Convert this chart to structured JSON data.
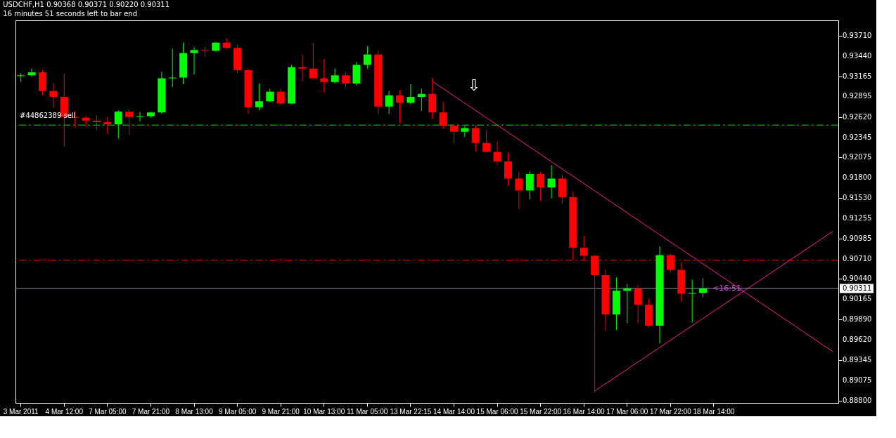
{
  "chart_data": {
    "type": "candlestick",
    "title": "USDCHF,H1  0.90368 0.90371 0.90220 0.90311",
    "subtitle": "16 minutes 51 seconds left to bar end",
    "categories": [
      "3 Mar 2011",
      null,
      null,
      null,
      "4 Mar 12:00",
      null,
      null,
      null,
      "7 Mar 05:00",
      null,
      null,
      null,
      "7 Mar 21:00",
      null,
      null,
      null,
      "8 Mar 13:00",
      null,
      null,
      null,
      "9 Mar 05:00",
      null,
      null,
      null,
      "9 Mar 21:00",
      null,
      null,
      null,
      "10 Mar 13:00",
      null,
      null,
      null,
      "11 Mar 05:00",
      null,
      null,
      null,
      "13 Mar 22:15",
      null,
      null,
      null,
      "14 Mar 14:00",
      null,
      null,
      null,
      "15 Mar 06:00",
      null,
      null,
      null,
      "15 Mar 22:00",
      null,
      null,
      null,
      "16 Mar 14:00",
      null,
      null,
      null,
      "17 Mar 06:00",
      null,
      null,
      null,
      "17 Mar 22:00",
      null,
      null,
      null,
      "18 Mar 14:00",
      null,
      null,
      null,
      null,
      null,
      null,
      null,
      null,
      null,
      null,
      null
    ],
    "ohlc": [
      [
        0.9317,
        0.9321,
        0.9309,
        0.9318
      ],
      [
        0.9318,
        0.9327,
        0.9316,
        0.9322
      ],
      [
        0.9322,
        0.9325,
        0.9291,
        0.9297
      ],
      [
        0.9297,
        0.9308,
        0.9274,
        0.9289
      ],
      [
        0.9289,
        0.932,
        0.9222,
        0.9262
      ],
      [
        0.9262,
        0.927,
        0.9248,
        0.9261
      ],
      [
        0.9261,
        0.9263,
        0.9249,
        0.9257
      ],
      [
        0.9257,
        0.9264,
        0.9244,
        0.9255
      ],
      [
        0.9255,
        0.9262,
        0.9239,
        0.9252
      ],
      [
        0.9252,
        0.9271,
        0.9233,
        0.9269
      ],
      [
        0.9269,
        0.9272,
        0.9238,
        0.9262
      ],
      [
        0.9262,
        0.9269,
        0.9256,
        0.9263
      ],
      [
        0.9263,
        0.9269,
        0.9261,
        0.9268
      ],
      [
        0.9268,
        0.9323,
        0.9266,
        0.9314
      ],
      [
        0.9314,
        0.9354,
        0.9302,
        0.9315
      ],
      [
        0.9315,
        0.9362,
        0.9306,
        0.9348
      ],
      [
        0.9348,
        0.9356,
        0.9319,
        0.9352
      ],
      [
        0.9352,
        0.9356,
        0.9343,
        0.9351
      ],
      [
        0.9351,
        0.9363,
        0.935,
        0.9362
      ],
      [
        0.9362,
        0.9368,
        0.9353,
        0.9355
      ],
      [
        0.9355,
        0.936,
        0.9321,
        0.9325
      ],
      [
        0.9325,
        0.9327,
        0.9266,
        0.9275
      ],
      [
        0.9275,
        0.9307,
        0.9271,
        0.9283
      ],
      [
        0.9283,
        0.93,
        0.9282,
        0.9296
      ],
      [
        0.9296,
        0.93,
        0.9278,
        0.928
      ],
      [
        0.928,
        0.9332,
        0.9279,
        0.9329
      ],
      [
        0.9329,
        0.9346,
        0.931,
        0.9327
      ],
      [
        0.9327,
        0.9362,
        0.9312,
        0.9314
      ],
      [
        0.9314,
        0.934,
        0.9295,
        0.9309
      ],
      [
        0.9309,
        0.9327,
        0.9307,
        0.9318
      ],
      [
        0.9318,
        0.9323,
        0.9301,
        0.9307
      ],
      [
        0.9307,
        0.9336,
        0.9304,
        0.9332
      ],
      [
        0.9332,
        0.9357,
        0.9327,
        0.9346
      ],
      [
        0.9346,
        0.9351,
        0.9266,
        0.9276
      ],
      [
        0.9276,
        0.9297,
        0.9266,
        0.9291
      ],
      [
        0.9291,
        0.9298,
        0.9254,
        0.9281
      ],
      [
        0.9281,
        0.9306,
        0.9279,
        0.9289
      ],
      [
        0.9289,
        0.93,
        0.927,
        0.9293
      ],
      [
        0.9293,
        0.9315,
        0.9259,
        0.9268
      ],
      [
        0.9268,
        0.9282,
        0.9246,
        0.925
      ],
      [
        0.925,
        0.9252,
        0.9226,
        0.9242
      ],
      [
        0.9242,
        0.925,
        0.9235,
        0.9247
      ],
      [
        0.9247,
        0.9251,
        0.9215,
        0.9227
      ],
      [
        0.9227,
        0.9244,
        0.9214,
        0.9215
      ],
      [
        0.9215,
        0.9229,
        0.9197,
        0.9202
      ],
      [
        0.9202,
        0.9214,
        0.9169,
        0.9179
      ],
      [
        0.9179,
        0.9188,
        0.9138,
        0.9163
      ],
      [
        0.9163,
        0.9189,
        0.9151,
        0.9185
      ],
      [
        0.9185,
        0.9188,
        0.9149,
        0.9167
      ],
      [
        0.9167,
        0.9197,
        0.9152,
        0.9179
      ],
      [
        0.9179,
        0.9184,
        0.9145,
        0.9154
      ],
      [
        0.9154,
        0.9161,
        0.9069,
        0.9086
      ],
      [
        0.9086,
        0.9102,
        0.9068,
        0.9075
      ],
      [
        0.9075,
        0.9076,
        0.8891,
        0.9049
      ],
      [
        0.9049,
        0.9057,
        0.8974,
        0.8996
      ],
      [
        0.8996,
        0.9046,
        0.8975,
        0.9028
      ],
      [
        0.9028,
        0.9037,
        0.8984,
        0.9031
      ],
      [
        0.9031,
        0.9036,
        0.8984,
        0.9009
      ],
      [
        0.9009,
        0.9017,
        0.8979,
        0.8981
      ],
      [
        0.8981,
        0.9088,
        0.8957,
        0.9076
      ],
      [
        0.9076,
        0.9078,
        0.9053,
        0.9056
      ],
      [
        0.9056,
        0.9066,
        0.9013,
        0.9024
      ],
      [
        0.9024,
        0.9043,
        0.8985,
        0.9025
      ],
      [
        0.9025,
        0.9045,
        0.9019,
        0.90311
      ],
      null,
      null,
      null,
      null,
      null,
      null,
      null,
      null,
      null,
      null,
      null,
      null
    ],
    "colors": [
      "#00ff00",
      "#00ff00",
      "#ff0000",
      "#ff0000",
      "#ff0000",
      "#ff0000",
      "#ff0000",
      "#ff0000",
      "#ff0000",
      "#00ff00",
      "#ff0000",
      "#00ff00",
      "#00ff00",
      "#00ff00",
      "#00ff00",
      "#00ff00",
      "#00ff00",
      "#ff0000",
      "#00ff00",
      "#ff0000",
      "#ff0000",
      "#ff0000",
      "#00ff00",
      "#00ff00",
      "#ff0000",
      "#00ff00",
      "#ff0000",
      "#ff0000",
      "#ff0000",
      "#00ff00",
      "#ff0000",
      "#00ff00",
      "#00ff00",
      "#ff0000",
      "#00ff00",
      "#ff0000",
      "#00ff00",
      "#00ff00",
      "#ff0000",
      "#ff0000",
      "#ff0000",
      "#00ff00",
      "#ff0000",
      "#ff0000",
      "#ff0000",
      "#ff0000",
      "#ff0000",
      "#00ff00",
      "#ff0000",
      "#00ff00",
      "#ff0000",
      "#ff0000",
      "#ff0000",
      "#ff0000",
      "#ff0000",
      "#00ff00",
      "#00ff00",
      "#ff0000",
      "#ff0000",
      "#00ff00",
      "#ff0000",
      "#ff0000",
      "#00ff00",
      "#00ff00",
      null,
      null,
      null,
      null,
      null,
      null,
      null,
      null,
      null,
      null,
      null,
      null
    ],
    "series": [
      {
        "type": "line",
        "color": "#ff1f8f",
        "values": [
          null,
          null,
          null,
          null,
          null,
          null,
          null,
          null,
          null,
          null,
          null,
          null,
          null,
          null,
          null,
          null,
          null,
          null,
          null,
          null,
          null,
          null,
          null,
          null,
          null,
          null,
          null,
          null,
          null,
          null,
          null,
          null,
          null,
          null,
          null,
          null,
          null,
          null,
          0.931,
          null,
          null,
          null,
          null,
          null,
          null,
          null,
          null,
          null,
          null,
          null,
          null,
          null,
          null,
          null,
          null,
          null,
          null,
          null,
          null,
          null,
          null,
          null,
          null,
          null,
          null,
          null,
          null,
          null,
          null,
          null,
          null,
          null,
          null,
          null,
          null,
          0.8946
        ]
      },
      {
        "type": "line",
        "color": "#ff1f8f",
        "values": [
          null,
          null,
          null,
          null,
          null,
          null,
          null,
          null,
          null,
          null,
          null,
          null,
          null,
          null,
          null,
          null,
          null,
          null,
          null,
          null,
          null,
          null,
          null,
          null,
          null,
          null,
          null,
          null,
          null,
          null,
          null,
          null,
          null,
          null,
          null,
          null,
          null,
          null,
          null,
          null,
          null,
          null,
          null,
          null,
          null,
          null,
          null,
          null,
          null,
          null,
          null,
          null,
          null,
          0.8893,
          null,
          null,
          null,
          null,
          null,
          null,
          null,
          null,
          null,
          null,
          null,
          null,
          null,
          null,
          null,
          null,
          null,
          null,
          null,
          null,
          null,
          0.9108
        ]
      }
    ],
    "ylim": [
      0.8877,
      0.9392
    ],
    "yticks": [
      {
        "value": 0.888,
        "label": "0.88800"
      },
      {
        "value": 0.89075,
        "label": "0.89075"
      },
      {
        "value": 0.89345,
        "label": "0.89345"
      },
      {
        "value": 0.8962,
        "label": "0.89620"
      },
      {
        "value": 0.8989,
        "label": "0.89890"
      },
      {
        "value": 0.90165,
        "label": "0.90165"
      },
      {
        "value": 0.9044,
        "label": "0.90440"
      },
      {
        "value": 0.9071,
        "label": "0.90710"
      },
      {
        "value": 0.90985,
        "label": "0.90985"
      },
      {
        "value": 0.91255,
        "label": "0.91255"
      },
      {
        "value": 0.9153,
        "label": "0.91530"
      },
      {
        "value": 0.918,
        "label": "0.91800"
      },
      {
        "value": 0.92075,
        "label": "0.92075"
      },
      {
        "value": 0.92345,
        "label": "0.92345"
      },
      {
        "value": 0.9262,
        "label": "0.92620"
      },
      {
        "value": 0.92895,
        "label": "0.92895"
      },
      {
        "value": 0.93165,
        "label": "0.93165"
      },
      {
        "value": 0.9344,
        "label": "0.93440"
      },
      {
        "value": 0.9371,
        "label": "0.93710"
      }
    ],
    "ref_lines": [
      {
        "axis": "y",
        "value": 0.9251,
        "label": "#44862389 sell",
        "color": "#00dd00",
        "line_style": "dashed"
      },
      {
        "axis": "y",
        "value": 0.9069,
        "label": null,
        "color": "#ff0000",
        "line_style": "dashed"
      },
      {
        "axis": "y",
        "value": 0.90311,
        "label": "0.90311",
        "color": "#8896a8",
        "line_style": "solid"
      }
    ],
    "annotations": [
      "⇩",
      {
        "text": "<16:51",
        "x": "18 Mar 14:00",
        "y": 0.90311
      }
    ],
    "grid": false
  }
}
